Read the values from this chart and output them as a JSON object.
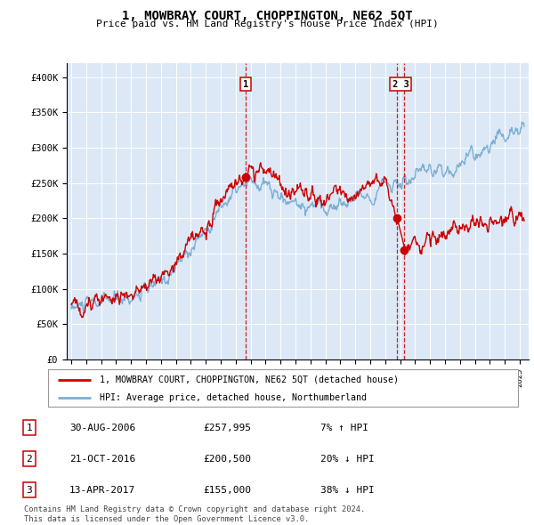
{
  "title": "1, MOWBRAY COURT, CHOPPINGTON, NE62 5QT",
  "subtitle": "Price paid vs. HM Land Registry's House Price Index (HPI)",
  "legend_property": "1, MOWBRAY COURT, CHOPPINGTON, NE62 5QT (detached house)",
  "legend_hpi": "HPI: Average price, detached house, Northumberland",
  "footer": "Contains HM Land Registry data © Crown copyright and database right 2024.\nThis data is licensed under the Open Government Licence v3.0.",
  "sales": [
    {
      "num": 1,
      "date": "30-AUG-2006",
      "price": "£257,995",
      "hpi": "7% ↑ HPI",
      "year": 2006.67
    },
    {
      "num": 2,
      "date": "21-OCT-2016",
      "price": "£200,500",
      "hpi": "20% ↓ HPI",
      "year": 2016.8
    },
    {
      "num": 3,
      "date": "13-APR-2017",
      "price": "£155,000",
      "hpi": "38% ↓ HPI",
      "year": 2017.28
    }
  ],
  "sale_marker_prices": [
    257995,
    200500,
    155000
  ],
  "background_color": "#dce8f5",
  "red_color": "#cc0000",
  "blue_color": "#7bafd4",
  "ylim": [
    0,
    420000
  ],
  "yticks": [
    0,
    50000,
    100000,
    150000,
    200000,
    250000,
    300000,
    350000,
    400000
  ]
}
